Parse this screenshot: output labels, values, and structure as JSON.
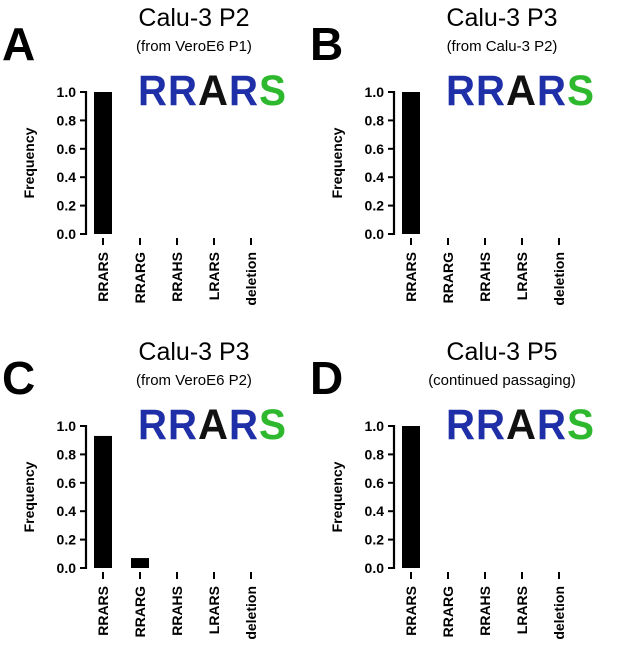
{
  "chart_data": [
    {
      "type": "bar",
      "panel_letter": "A",
      "title": "Calu-3 P2",
      "subtitle": "(from VeroE6 P1)",
      "categories": [
        "RRARS",
        "RRARG",
        "RRAHS",
        "LRARS",
        "deletion"
      ],
      "values": [
        1.0,
        0.0,
        0.0,
        0.0,
        0.0
      ],
      "ylabel": "Frequency",
      "xlabel": "",
      "ylim": [
        0,
        1.0
      ],
      "yticks": [
        "0.0",
        "0.2",
        "0.4",
        "0.6",
        "0.8",
        "1.0"
      ],
      "grid": false,
      "logo": [
        {
          "char": "R",
          "color": "#1f2fa8"
        },
        {
          "char": "R",
          "color": "#1f2fa8"
        },
        {
          "char": "A",
          "color": "#111111"
        },
        {
          "char": "R",
          "color": "#1f2fa8"
        },
        {
          "char": "S",
          "color": "#2db82d"
        }
      ]
    },
    {
      "type": "bar",
      "panel_letter": "B",
      "title": "Calu-3 P3",
      "subtitle": "(from Calu-3 P2)",
      "categories": [
        "RRARS",
        "RRARG",
        "RRAHS",
        "LRARS",
        "deletion"
      ],
      "values": [
        1.0,
        0.0,
        0.0,
        0.0,
        0.0
      ],
      "ylabel": "Frequency",
      "xlabel": "",
      "ylim": [
        0,
        1.0
      ],
      "yticks": [
        "0.0",
        "0.2",
        "0.4",
        "0.6",
        "0.8",
        "1.0"
      ],
      "grid": false,
      "logo": [
        {
          "char": "R",
          "color": "#1f2fa8"
        },
        {
          "char": "R",
          "color": "#1f2fa8"
        },
        {
          "char": "A",
          "color": "#111111"
        },
        {
          "char": "R",
          "color": "#1f2fa8"
        },
        {
          "char": "S",
          "color": "#2db82d"
        }
      ]
    },
    {
      "type": "bar",
      "panel_letter": "C",
      "title": "Calu-3 P3",
      "subtitle": "(from VeroE6 P2)",
      "categories": [
        "RRARS",
        "RRARG",
        "RRAHS",
        "LRARS",
        "deletion"
      ],
      "values": [
        0.93,
        0.07,
        0.0,
        0.0,
        0.0
      ],
      "ylabel": "Frequency",
      "xlabel": "",
      "ylim": [
        0,
        1.0
      ],
      "yticks": [
        "0.0",
        "0.2",
        "0.4",
        "0.6",
        "0.8",
        "1.0"
      ],
      "grid": false,
      "logo": [
        {
          "char": "R",
          "color": "#1f2fa8"
        },
        {
          "char": "R",
          "color": "#1f2fa8"
        },
        {
          "char": "A",
          "color": "#111111"
        },
        {
          "char": "R",
          "color": "#1f2fa8"
        },
        {
          "char": "S",
          "color": "#2db82d"
        }
      ]
    },
    {
      "type": "bar",
      "panel_letter": "D",
      "title": "Calu-3 P5",
      "subtitle": "(continued passaging)",
      "categories": [
        "RRARS",
        "RRARG",
        "RRAHS",
        "LRARS",
        "deletion"
      ],
      "values": [
        1.0,
        0.0,
        0.0,
        0.0,
        0.0
      ],
      "ylabel": "Frequency",
      "xlabel": "",
      "ylim": [
        0,
        1.0
      ],
      "yticks": [
        "0.0",
        "0.2",
        "0.4",
        "0.6",
        "0.8",
        "1.0"
      ],
      "grid": false,
      "logo": [
        {
          "char": "R",
          "color": "#1f2fa8"
        },
        {
          "char": "R",
          "color": "#1f2fa8"
        },
        {
          "char": "A",
          "color": "#111111"
        },
        {
          "char": "R",
          "color": "#1f2fa8"
        },
        {
          "char": "S",
          "color": "#2db82d"
        }
      ]
    }
  ],
  "colors": {
    "bar": "#000000",
    "axis": "#000000"
  }
}
